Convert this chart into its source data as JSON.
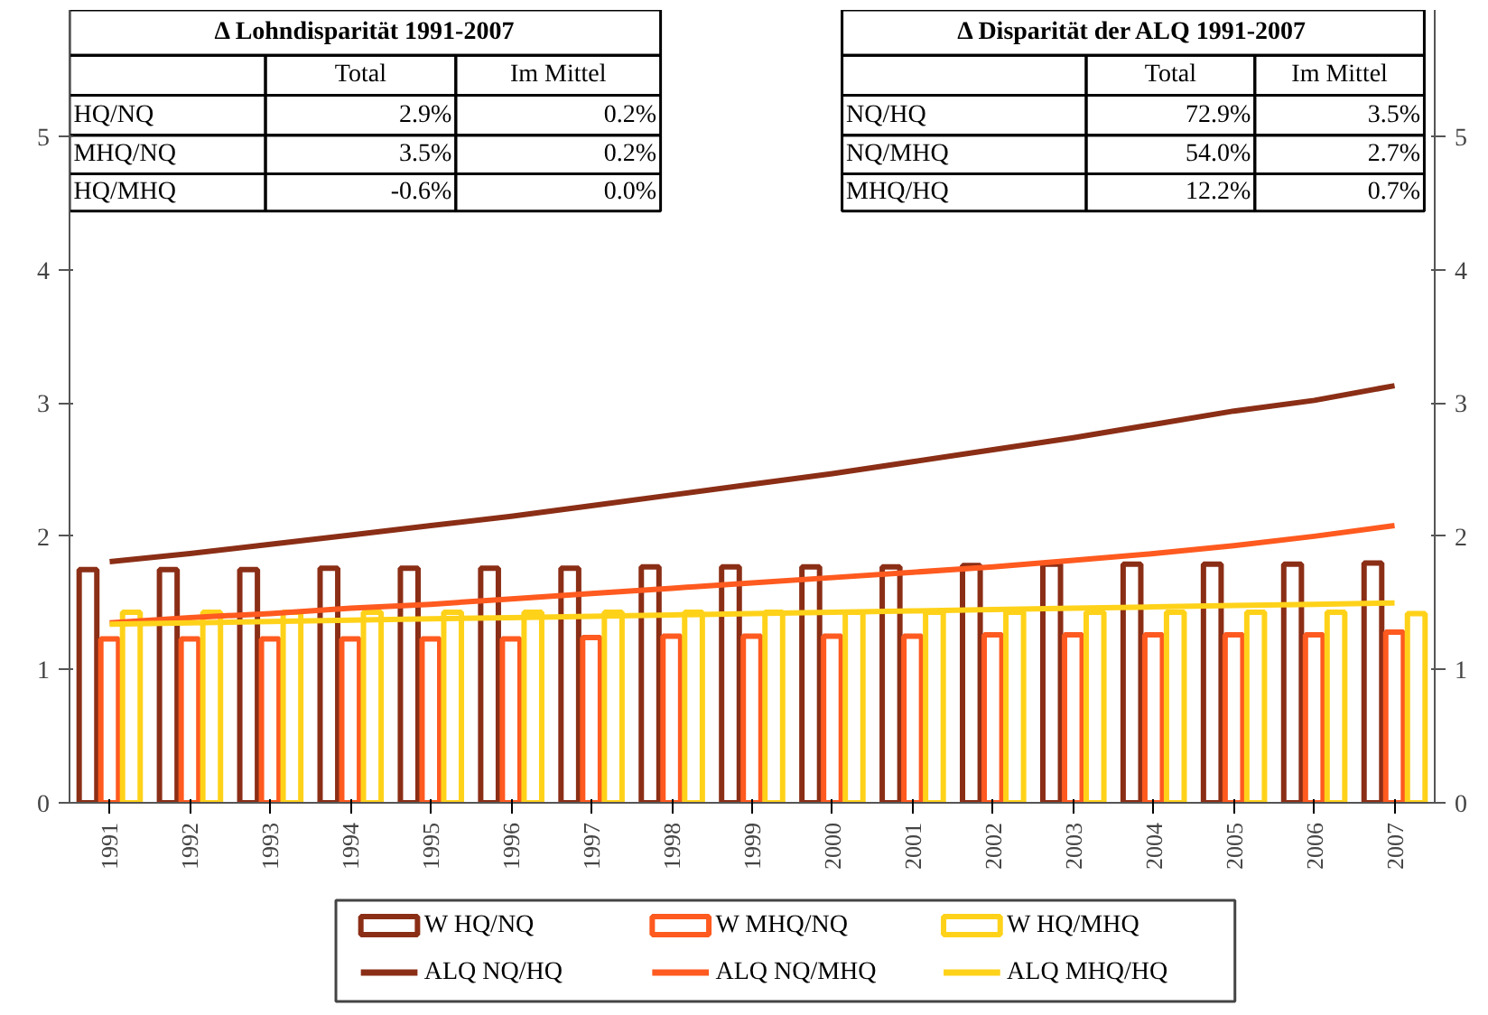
{
  "chart_data": {
    "type": "bar",
    "categories": [
      "1991",
      "1992",
      "1993",
      "1994",
      "1995",
      "1996",
      "1997",
      "1998",
      "1999",
      "2000",
      "2001",
      "2002",
      "2003",
      "2004",
      "2005",
      "2006",
      "2007"
    ],
    "series": [
      {
        "name": "W HQ/NQ",
        "color": "#8b2e16",
        "values": [
          1.75,
          1.75,
          1.75,
          1.76,
          1.76,
          1.76,
          1.76,
          1.77,
          1.77,
          1.77,
          1.77,
          1.78,
          1.79,
          1.79,
          1.79,
          1.79,
          1.8
        ]
      },
      {
        "name": "W MHQ/NQ",
        "color": "#ff5a1f",
        "values": [
          1.23,
          1.23,
          1.23,
          1.23,
          1.23,
          1.23,
          1.24,
          1.25,
          1.25,
          1.25,
          1.25,
          1.26,
          1.26,
          1.26,
          1.26,
          1.26,
          1.28
        ]
      },
      {
        "name": "W HQ/MHQ",
        "color": "#ffd21a",
        "values": [
          1.43,
          1.43,
          1.43,
          1.43,
          1.43,
          1.43,
          1.43,
          1.43,
          1.43,
          1.43,
          1.43,
          1.43,
          1.43,
          1.43,
          1.43,
          1.43,
          1.42
        ]
      },
      {
        "name": "ALQ NQ/HQ",
        "type": "line",
        "color": "#8b2e16",
        "values": [
          1.81,
          1.87,
          1.94,
          2.01,
          2.08,
          2.15,
          2.23,
          2.31,
          2.39,
          2.47,
          2.56,
          2.65,
          2.74,
          2.84,
          2.94,
          3.02,
          3.13
        ]
      },
      {
        "name": "ALQ NQ/MHQ",
        "type": "line",
        "color": "#ff5a1f",
        "values": [
          1.35,
          1.39,
          1.42,
          1.46,
          1.49,
          1.53,
          1.57,
          1.61,
          1.65,
          1.69,
          1.73,
          1.77,
          1.82,
          1.87,
          1.93,
          2.0,
          2.08
        ]
      },
      {
        "name": "ALQ MHQ/HQ",
        "type": "line",
        "color": "#ffd21a",
        "values": [
          1.34,
          1.35,
          1.36,
          1.37,
          1.38,
          1.39,
          1.4,
          1.41,
          1.42,
          1.43,
          1.44,
          1.45,
          1.46,
          1.47,
          1.48,
          1.49,
          1.5
        ]
      }
    ],
    "ylim": [
      0,
      5.95
    ],
    "yticks": [
      0,
      1,
      2,
      3,
      4,
      5
    ],
    "y2lim": [
      0,
      5.95
    ],
    "y2ticks": [
      0,
      1,
      2,
      3,
      4,
      5
    ],
    "legend": "bottom",
    "annotations": [
      "Δ Lohndisparität 1991-2007",
      "Total",
      "Im Mittel",
      "HQ/NQ",
      "2.9%",
      "0.2%",
      "MHQ/NQ",
      "3.5%",
      "0.2%",
      "HQ/MHQ",
      "-0.6%",
      "0.0%",
      "Δ Disparität der ALQ 1991-2007",
      "Total",
      "Im Mittel",
      "NQ/HQ",
      "72.9%",
      "3.5%",
      "NQ/MHQ",
      "54.0%",
      "2.7%",
      "MHQ/HQ",
      "12.2%",
      "0.7%"
    ]
  }
}
